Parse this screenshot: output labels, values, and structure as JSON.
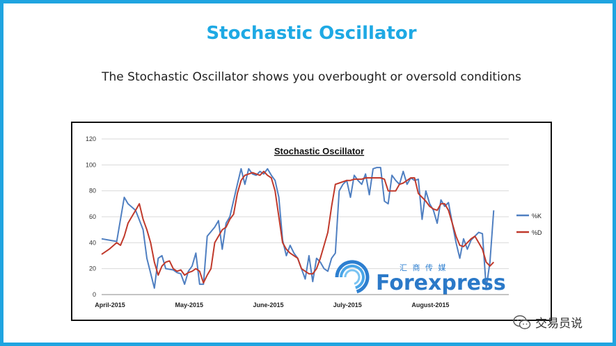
{
  "header": {
    "title": "Stochastic Oscillator",
    "subtitle": "The Stochastic Oscillator shows you overbought or oversold conditions"
  },
  "watermark": {
    "brand": "Forexpress",
    "brand_cn": "汇 商 传 媒",
    "wechat_label": "交易员说",
    "wechat_icon": "wechat-icon"
  },
  "colors": {
    "frame": "#1fa4e0",
    "title": "#1ea9e4",
    "k_line": "#4f7fc1",
    "d_line": "#c0392b"
  },
  "chart_data": {
    "type": "line",
    "title": "Stochastic Oscillator",
    "xlabel": "",
    "ylabel": "",
    "ylim": [
      0,
      120
    ],
    "yticks": [
      0,
      20,
      40,
      60,
      80,
      100,
      120
    ],
    "xlim": [
      0,
      108
    ],
    "xticks": [
      {
        "x": 0,
        "label": "April-2015"
      },
      {
        "x": 21,
        "label": "May-2015"
      },
      {
        "x": 42,
        "label": "June-2015"
      },
      {
        "x": 63,
        "label": "July-2015"
      },
      {
        "x": 85,
        "label": "August-2015"
      }
    ],
    "legend": "right",
    "grid": "horizontal",
    "series": [
      {
        "name": "%K",
        "color": "#4f7fc1",
        "values": [
          [
            0,
            43
          ],
          [
            2,
            42
          ],
          [
            4,
            41
          ],
          [
            6,
            75
          ],
          [
            7,
            70
          ],
          [
            9,
            65
          ],
          [
            11,
            50
          ],
          [
            12,
            28
          ],
          [
            14,
            5
          ],
          [
            15,
            28
          ],
          [
            16,
            30
          ],
          [
            17,
            20
          ],
          [
            19,
            19
          ],
          [
            20,
            17
          ],
          [
            21,
            16
          ],
          [
            22,
            8
          ],
          [
            23,
            18
          ],
          [
            24,
            22
          ],
          [
            25,
            32
          ],
          [
            26,
            8
          ],
          [
            27,
            8
          ],
          [
            28,
            45
          ],
          [
            30,
            52
          ],
          [
            31,
            57
          ],
          [
            32,
            35
          ],
          [
            33,
            55
          ],
          [
            34,
            60
          ],
          [
            36,
            85
          ],
          [
            37,
            97
          ],
          [
            38,
            85
          ],
          [
            39,
            97
          ],
          [
            40,
            93
          ],
          [
            41,
            92
          ],
          [
            42,
            95
          ],
          [
            43,
            93
          ],
          [
            44,
            97
          ],
          [
            45,
            92
          ],
          [
            46,
            88
          ],
          [
            47,
            75
          ],
          [
            48,
            42
          ],
          [
            49,
            30
          ],
          [
            50,
            38
          ],
          [
            51,
            32
          ],
          [
            52,
            28
          ],
          [
            53,
            20
          ],
          [
            54,
            12
          ],
          [
            55,
            30
          ],
          [
            56,
            10
          ],
          [
            57,
            28
          ],
          [
            58,
            25
          ],
          [
            59,
            20
          ],
          [
            60,
            18
          ],
          [
            61,
            28
          ],
          [
            62,
            32
          ],
          [
            63,
            80
          ],
          [
            64,
            85
          ],
          [
            65,
            88
          ],
          [
            66,
            75
          ],
          [
            67,
            92
          ],
          [
            68,
            88
          ],
          [
            69,
            85
          ],
          [
            70,
            93
          ],
          [
            71,
            77
          ],
          [
            72,
            97
          ],
          [
            73,
            98
          ],
          [
            74,
            98
          ],
          [
            75,
            72
          ],
          [
            76,
            70
          ],
          [
            77,
            92
          ],
          [
            78,
            88
          ],
          [
            79,
            85
          ],
          [
            80,
            95
          ],
          [
            81,
            85
          ],
          [
            82,
            90
          ],
          [
            83,
            88
          ],
          [
            84,
            89
          ],
          [
            85,
            58
          ],
          [
            86,
            80
          ],
          [
            87,
            70
          ],
          [
            88,
            65
          ],
          [
            89,
            55
          ],
          [
            90,
            73
          ],
          [
            91,
            68
          ],
          [
            92,
            71
          ],
          [
            93,
            55
          ],
          [
            94,
            40
          ],
          [
            95,
            28
          ],
          [
            96,
            43
          ],
          [
            97,
            35
          ],
          [
            98,
            42
          ],
          [
            99,
            45
          ],
          [
            100,
            48
          ],
          [
            101,
            47
          ],
          [
            102,
            5
          ],
          [
            103,
            25
          ],
          [
            104,
            65
          ]
        ]
      },
      {
        "name": "%D",
        "color": "#c0392b",
        "values": [
          [
            0,
            31
          ],
          [
            2,
            35
          ],
          [
            4,
            40
          ],
          [
            5,
            38
          ],
          [
            6,
            45
          ],
          [
            7,
            55
          ],
          [
            8,
            60
          ],
          [
            9,
            65
          ],
          [
            10,
            70
          ],
          [
            11,
            58
          ],
          [
            12,
            50
          ],
          [
            13,
            40
          ],
          [
            14,
            25
          ],
          [
            15,
            15
          ],
          [
            16,
            22
          ],
          [
            17,
            25
          ],
          [
            18,
            26
          ],
          [
            19,
            20
          ],
          [
            20,
            18
          ],
          [
            21,
            19
          ],
          [
            22,
            15
          ],
          [
            23,
            17
          ],
          [
            24,
            18
          ],
          [
            25,
            20
          ],
          [
            26,
            18
          ],
          [
            27,
            9
          ],
          [
            28,
            15
          ],
          [
            29,
            20
          ],
          [
            30,
            40
          ],
          [
            31,
            45
          ],
          [
            32,
            50
          ],
          [
            33,
            52
          ],
          [
            34,
            58
          ],
          [
            35,
            62
          ],
          [
            36,
            78
          ],
          [
            37,
            88
          ],
          [
            38,
            92
          ],
          [
            39,
            93
          ],
          [
            40,
            94
          ],
          [
            41,
            93
          ],
          [
            42,
            92
          ],
          [
            43,
            95
          ],
          [
            44,
            92
          ],
          [
            45,
            90
          ],
          [
            46,
            80
          ],
          [
            47,
            60
          ],
          [
            48,
            40
          ],
          [
            49,
            35
          ],
          [
            50,
            32
          ],
          [
            51,
            30
          ],
          [
            52,
            28
          ],
          [
            53,
            20
          ],
          [
            54,
            18
          ],
          [
            55,
            16
          ],
          [
            56,
            16
          ],
          [
            57,
            20
          ],
          [
            58,
            28
          ],
          [
            59,
            38
          ],
          [
            60,
            48
          ],
          [
            61,
            68
          ],
          [
            62,
            85
          ],
          [
            63,
            86
          ],
          [
            64,
            87
          ],
          [
            65,
            88
          ],
          [
            66,
            88
          ],
          [
            67,
            89
          ],
          [
            68,
            89
          ],
          [
            69,
            89
          ],
          [
            70,
            90
          ],
          [
            71,
            90
          ],
          [
            72,
            90
          ],
          [
            73,
            90
          ],
          [
            74,
            90
          ],
          [
            75,
            89
          ],
          [
            76,
            80
          ],
          [
            77,
            80
          ],
          [
            78,
            80
          ],
          [
            79,
            85
          ],
          [
            80,
            86
          ],
          [
            81,
            88
          ],
          [
            82,
            90
          ],
          [
            83,
            90
          ],
          [
            84,
            78
          ],
          [
            85,
            75
          ],
          [
            86,
            72
          ],
          [
            87,
            68
          ],
          [
            88,
            66
          ],
          [
            89,
            65
          ],
          [
            90,
            70
          ],
          [
            91,
            70
          ],
          [
            92,
            65
          ],
          [
            93,
            55
          ],
          [
            94,
            45
          ],
          [
            95,
            38
          ],
          [
            96,
            37
          ],
          [
            97,
            40
          ],
          [
            98,
            43
          ],
          [
            99,
            45
          ],
          [
            100,
            40
          ],
          [
            101,
            35
          ],
          [
            102,
            25
          ],
          [
            103,
            22
          ],
          [
            104,
            25
          ]
        ]
      }
    ]
  }
}
